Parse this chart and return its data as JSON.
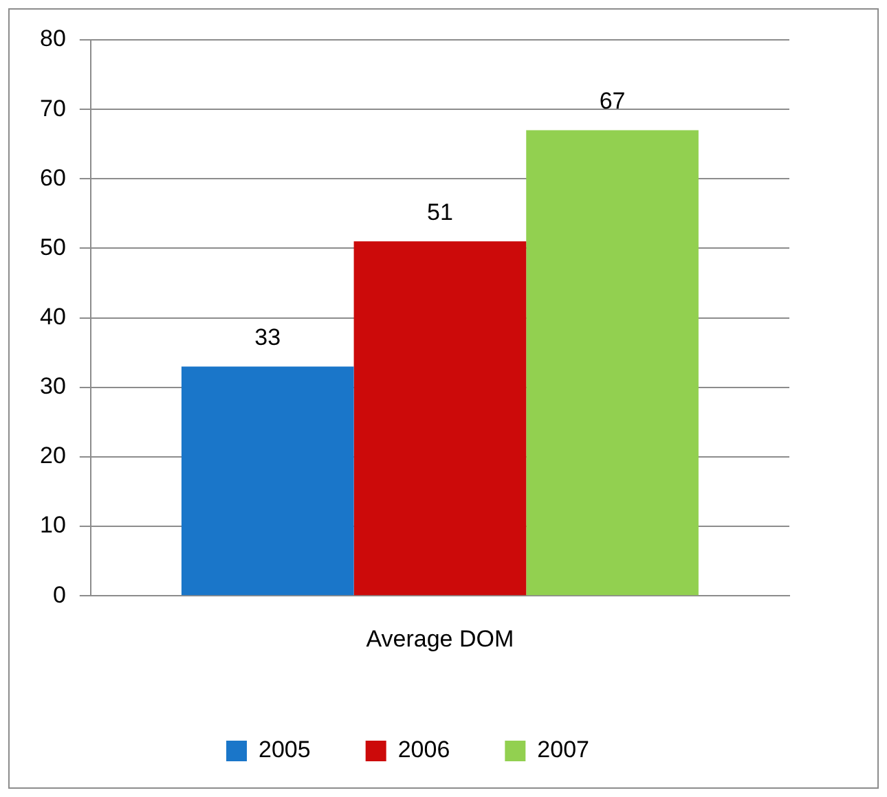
{
  "chart_data": {
    "type": "bar",
    "categories": [
      "Average DOM"
    ],
    "series": [
      {
        "name": "2005",
        "color": "#1a76c9",
        "values": [
          33
        ]
      },
      {
        "name": "2006",
        "color": "#cc0a0a",
        "values": [
          51
        ]
      },
      {
        "name": "2007",
        "color": "#92d050",
        "values": [
          67
        ]
      }
    ],
    "ylim": [
      0,
      80
    ],
    "yticks": [
      0,
      10,
      20,
      30,
      40,
      50,
      60,
      70,
      80
    ],
    "grid": "y",
    "legend": "bottom",
    "data_labels": true
  }
}
